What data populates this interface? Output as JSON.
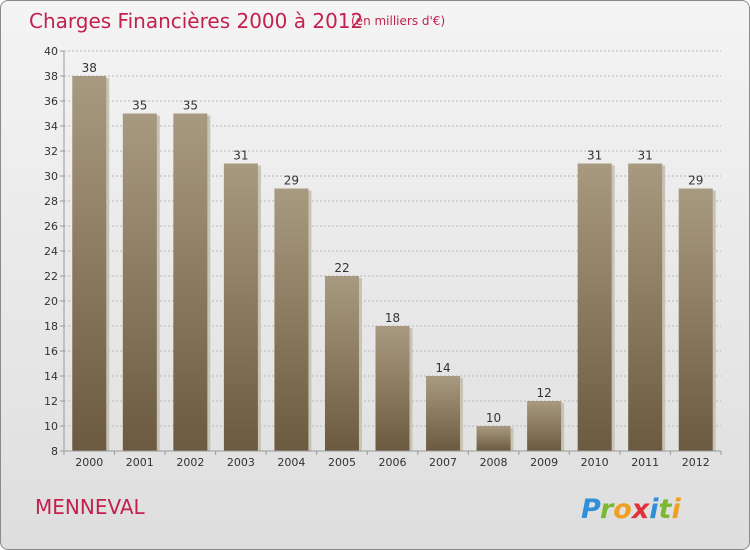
{
  "chart_data": {
    "type": "bar",
    "title": "Charges Financières 2000 à 2012",
    "subtitle": "(en milliers d'€)",
    "categories": [
      "2000",
      "2001",
      "2002",
      "2003",
      "2004",
      "2005",
      "2006",
      "2007",
      "2008",
      "2009",
      "2010",
      "2011",
      "2012"
    ],
    "values": [
      38,
      35,
      35,
      31,
      29,
      22,
      18,
      14,
      10,
      12,
      31,
      31,
      29
    ],
    "data_labels": [
      "38",
      "35",
      "35",
      "31",
      "29",
      "22",
      "18",
      "14",
      "10",
      "12",
      "31",
      "31",
      "29"
    ],
    "ylim": [
      8,
      40
    ],
    "yticks": [
      "8",
      "10",
      "12",
      "14",
      "16",
      "18",
      "20",
      "22",
      "24",
      "26",
      "28",
      "30",
      "32",
      "34",
      "36",
      "38",
      "40"
    ],
    "ytick_values": [
      8,
      10,
      12,
      14,
      16,
      18,
      20,
      22,
      24,
      26,
      28,
      30,
      32,
      34,
      36,
      38,
      40
    ],
    "grid": "horizontal dashed",
    "legend": "none",
    "colors": {
      "bar_top": "#a89a80",
      "bar_bottom": "#6b5a40",
      "bar_shadow": "#c9c3b6",
      "title": "#c4204f",
      "commune": "#c4204f"
    }
  },
  "footer": {
    "commune_name": "MENNEVAL",
    "logo_text": "Proxiti"
  }
}
